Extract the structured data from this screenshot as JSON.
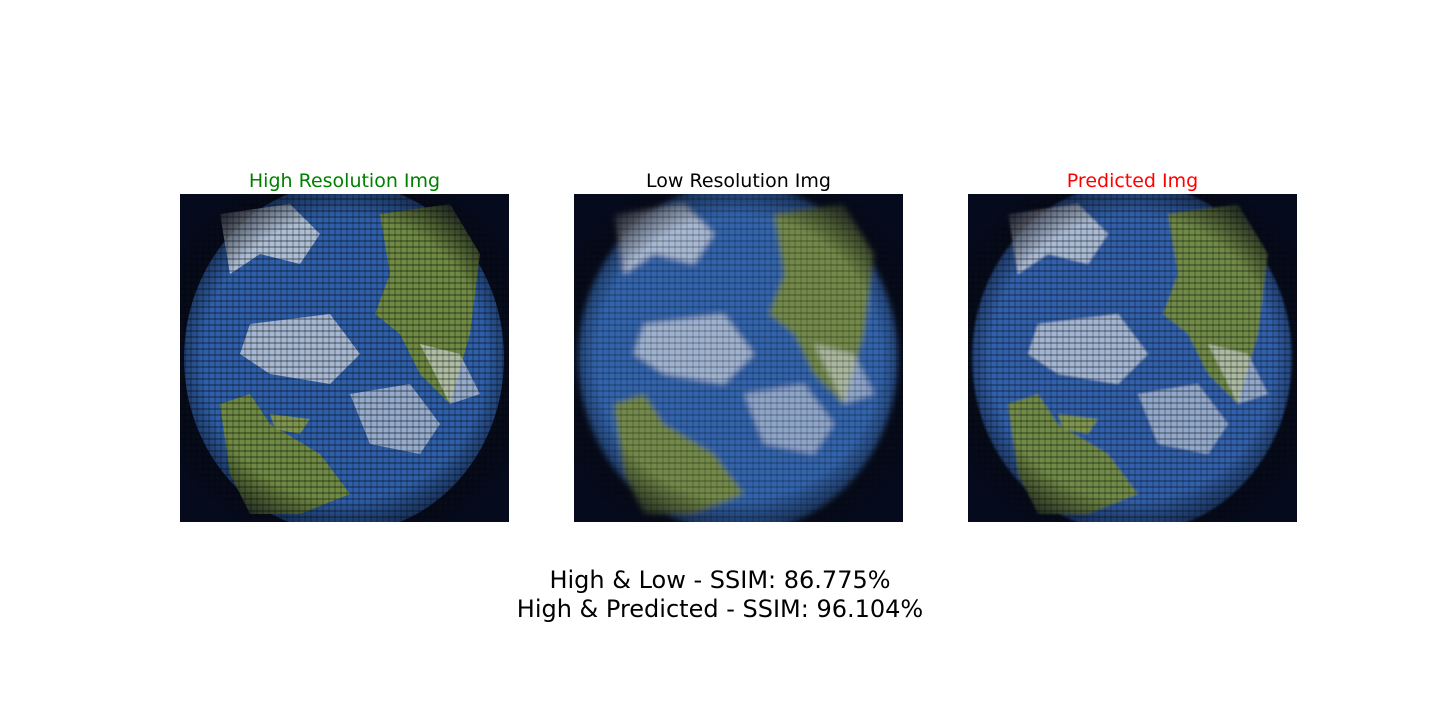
{
  "panels": [
    {
      "title": "High Resolution Img",
      "title_color": "#008000"
    },
    {
      "title": "Low Resolution Img",
      "title_color": "#000000"
    },
    {
      "title": "Predicted Img",
      "title_color": "#ff0000"
    }
  ],
  "caption": {
    "line1": "High & Low - SSIM: 86.775%",
    "line2": "High & Predicted - SSIM: 96.104%"
  },
  "image_description": "Satellite-style globe view: blue ocean, green/tan landmasses, white cloud bands, dark edges",
  "colors": {
    "ocean": "#2f5fa8",
    "land": "#6f8a44",
    "cloud": "#d8dde4",
    "space": "#0a1024"
  }
}
